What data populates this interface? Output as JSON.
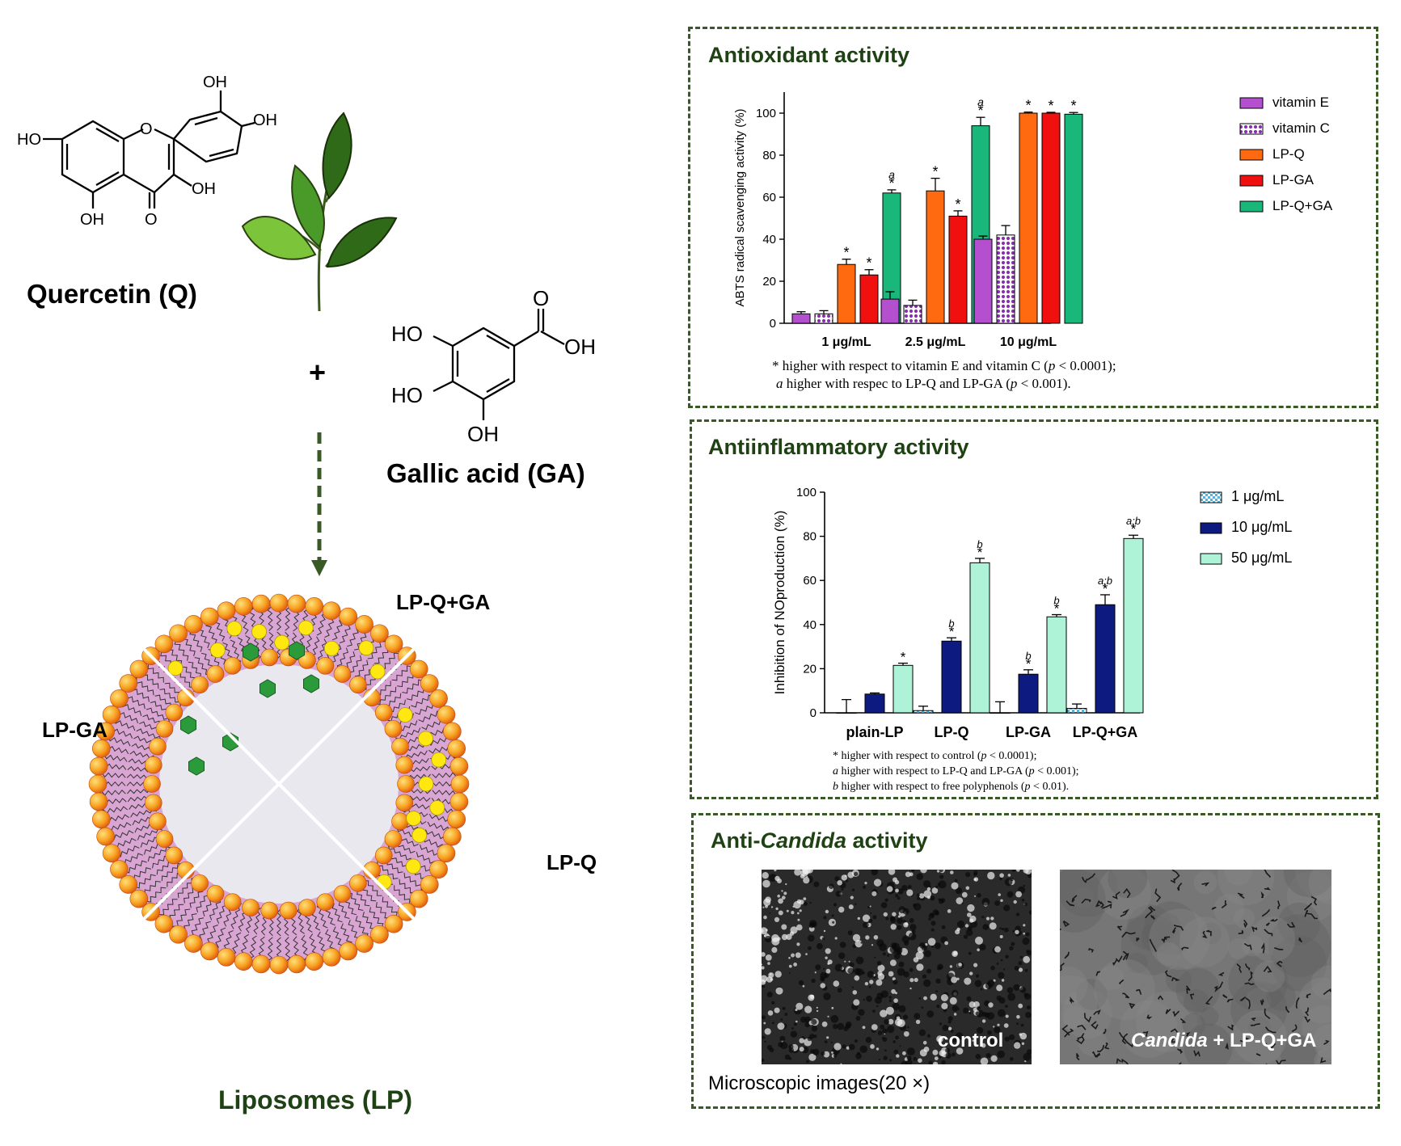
{
  "left": {
    "quercetin_label": "Quercetin (Q)",
    "gallic_label": "Gallic acid (GA)",
    "plus": "+",
    "liposomes_label": "Liposomes (LP)",
    "lp_q_ga_label": "LP-Q+GA",
    "lp_ga_label": "LP-GA",
    "lp_q_label": "LP-Q",
    "quercetin_groups": {
      "oh_top": "OH",
      "oh_right": "OH",
      "ho_left": "HO",
      "oh_3": "OH",
      "oh_5": "OH",
      "o_keto": "O",
      "o_ring": "O"
    },
    "gallic_groups": {
      "ho_top": "HO",
      "ho_mid": "HO",
      "oh_bottom": "OH",
      "oh_acid": "OH",
      "o_acid": "O"
    }
  },
  "antioxidant": {
    "title": "Antioxidant activity",
    "note1": "* higher with respect to vitamin  E and vitamin C (",
    "note1_p": "p",
    "note1_end": " < 0.0001);",
    "note2_a": "a",
    "note2": " higher with respec to LP-Q and LP-GA (",
    "note2_p": "p",
    "note2_end": " < 0.001)."
  },
  "antiinflammatory": {
    "title": "Antiinflammatory activity",
    "note1": "* higher with respect to control (",
    "note1_p": "p",
    "note1_end": " < 0.0001);",
    "note2_a": "a",
    "note2": " higher with respect to LP-Q and LP-GA (",
    "note2_p": "p",
    "note2_end": " < 0.001);",
    "note3_b": "b",
    "note3": " higher with respect to free polyphenols (",
    "note3_p": "p",
    "note3_end": " < 0.01)."
  },
  "anticandida": {
    "title_prefix": "Anti-",
    "title_italic": "Candida",
    "title_suffix": " activity",
    "caption": "Microscopic images(20 ×)",
    "img1_label": "control",
    "img2_label_italic": "Candida",
    "img2_label_rest": " + LP-Q+GA"
  },
  "chart_data": [
    {
      "type": "bar",
      "ylabel": "ABTS radical scavenging activity (%)",
      "categories": [
        "1  μg/mL",
        "2.5  μg/mL",
        "10  μg/mL"
      ],
      "ylim": [
        0,
        110
      ],
      "yticks": [
        0,
        20,
        40,
        60,
        80,
        100
      ],
      "series": [
        {
          "name": "vitamin E",
          "color": "#b44fd0",
          "pattern": "solid",
          "values": [
            4.5,
            11.5,
            40
          ],
          "errors": [
            1,
            3.5,
            1.5
          ],
          "marks": [
            "",
            "",
            ""
          ]
        },
        {
          "name": "vitamin C",
          "color": "#8a2fb0",
          "pattern": "dots",
          "values": [
            4.5,
            8.5,
            42
          ],
          "errors": [
            1.5,
            2.5,
            4.5
          ],
          "marks": [
            "",
            "",
            ""
          ]
        },
        {
          "name": "LP-Q",
          "color": "#ff6a10",
          "pattern": "solid",
          "values": [
            28,
            63,
            100
          ],
          "errors": [
            2.5,
            6,
            0.5
          ],
          "marks": [
            "*",
            "*",
            "*"
          ]
        },
        {
          "name": "LP-GA",
          "color": "#f01010",
          "pattern": "solid",
          "values": [
            23,
            51,
            100
          ],
          "errors": [
            2.5,
            2.5,
            0.4
          ],
          "marks": [
            "*",
            "*",
            "*"
          ]
        },
        {
          "name": "LP-Q+GA",
          "color": "#19b87a",
          "pattern": "solid",
          "values": [
            62,
            94,
            99.5
          ],
          "errors": [
            1.5,
            4,
            0.8
          ],
          "marks": [
            "a*",
            "a*",
            "*"
          ]
        }
      ],
      "legend": "right"
    },
    {
      "type": "bar",
      "ylabel": "Inhibition of NOproduction (%)",
      "categories": [
        "plain-LP",
        "LP-Q",
        "LP-GA",
        "LP-Q+GA"
      ],
      "ylim": [
        0,
        100
      ],
      "yticks": [
        0,
        20,
        40,
        60,
        80,
        100
      ],
      "series": [
        {
          "name": "1 μg/mL",
          "color": "#cfeeff",
          "pattern": "checker",
          "values": [
            0,
            1,
            0,
            2
          ],
          "errors": [
            6,
            2,
            5,
            2
          ],
          "marks": [
            "",
            "",
            "",
            ""
          ]
        },
        {
          "name": "10 μg/mL",
          "color": "#0d1a80",
          "pattern": "solid",
          "values": [
            8.5,
            32.5,
            17.5,
            49
          ],
          "errors": [
            0.5,
            1.5,
            2,
            4.5
          ],
          "marks": [
            "",
            "b*",
            "b*",
            "a;b*"
          ]
        },
        {
          "name": "50 μg/mL",
          "color": "#aef2d8",
          "pattern": "solid",
          "values": [
            21.5,
            68,
            43.5,
            79
          ],
          "errors": [
            1,
            2,
            1,
            1.5
          ],
          "marks": [
            "*",
            "b*",
            "b*",
            "a;b*"
          ]
        }
      ],
      "legend": "right"
    }
  ]
}
